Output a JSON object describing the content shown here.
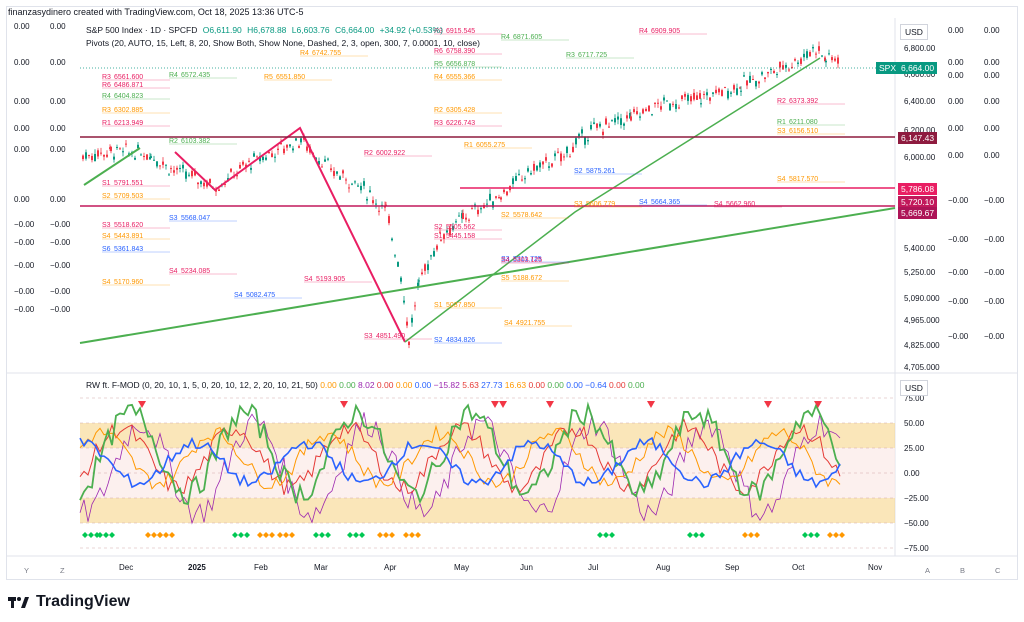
{
  "credit": "finanzasydinero created with TradingView.com, Oct 18, 2025 13:36 UTC-5",
  "header": {
    "symbol": "S&P 500 Index · 1D · SPCFD",
    "open": "O6,611.90",
    "high": "H6,678.88",
    "low": "L6,603.76",
    "close": "C6,664.00",
    "change": "+34.92 (+0.53%)",
    "pivots": "Pivots (20, AUTO, 15, Left, 8, 20, Show Both, Show None, Dashed, 2, 3, open, 300, 7, 0.0001, 10, close)",
    "rw": "RW ft. F-MOD (0, 20, 10, 1, 5, 0, 20, 10, 12, 2, 20, 10, 21, 50)",
    "rw_values": [
      "0.00",
      "0.00",
      "8.02",
      "0.00",
      "0.00",
      "0.00",
      "−15.82",
      "5.63",
      "27.73",
      "16.63",
      "0.00",
      "0.00",
      "0.00",
      "−0.64",
      "0.00",
      "0.00"
    ]
  },
  "price_scale": {
    "currency": "USD",
    "ticks": [
      "6,800.00",
      "6,600.00",
      "6,400.00",
      "6,200.00",
      "6,000.00",
      "5,400.00",
      "5,250.00",
      "5,090.000",
      "4,965.000",
      "4,825.000",
      "4,705.000"
    ],
    "tags": [
      {
        "label": "SPX",
        "value": "6,664.00",
        "color": "#089981"
      },
      {
        "label": "",
        "value": "6,147.43",
        "color": "#8e1b3f"
      },
      {
        "label": "",
        "value": "5,786.08",
        "color": "#e91e63"
      },
      {
        "label": "",
        "value": "5,720.10",
        "color": "#c2185b"
      },
      {
        "label": "",
        "value": "5,669.67",
        "color": "#ad1457"
      }
    ]
  },
  "osc_scale": {
    "currency": "USD",
    "ticks": [
      "75.00",
      "50.00",
      "25.00",
      "0.00",
      "−25.00",
      "−50.00",
      "−75.00"
    ]
  },
  "left_scale_top": [
    "0.00",
    "0.00",
    "0.00",
    "0.00",
    "0.00",
    "0.00",
    "−0.00",
    "−0.00",
    "−0.00",
    "−0.00",
    "−0.00"
  ],
  "right_extra_scale": [
    "0.00",
    "0.00",
    "0.00",
    "0.00",
    "0.00",
    "0.00",
    "−0.00",
    "−0.00",
    "−0.00",
    "−0.00",
    "−0.00"
  ],
  "time_axis": [
    "Dec",
    "2025",
    "Feb",
    "Mar",
    "Apr",
    "May",
    "Jun",
    "Jul",
    "Aug",
    "Sep",
    "Oct",
    "Nov"
  ],
  "nav_letters": [
    "Y",
    "Z",
    "A",
    "B",
    "C"
  ],
  "brand": "TradingView",
  "level_labels": [
    {
      "t": "R3",
      "v": "6561.600"
    },
    {
      "t": "R4",
      "v": "6572.435"
    },
    {
      "t": "R5",
      "v": "6551.850"
    },
    {
      "t": "R6",
      "v": "6486.871"
    },
    {
      "t": "R4",
      "v": "6404.823"
    },
    {
      "t": "R3",
      "v": "6302.885"
    },
    {
      "t": "R1",
      "v": "6213.949"
    },
    {
      "t": "R2",
      "v": "6103.382"
    },
    {
      "t": "R1",
      "v": "6055.275"
    },
    {
      "t": "R2",
      "v": "6002.922"
    },
    {
      "t": "S1",
      "v": "5791.551"
    },
    {
      "t": "S2",
      "v": "5709.503"
    },
    {
      "t": "S3",
      "v": "5568.047"
    },
    {
      "t": "S3",
      "v": "5518.620"
    },
    {
      "t": "S4",
      "v": "5443.891"
    },
    {
      "t": "S6",
      "v": "5361.843"
    },
    {
      "t": "S4",
      "v": "5234.085"
    },
    {
      "t": "S4",
      "v": "5170.960"
    },
    {
      "t": "S4",
      "v": "5082.475"
    },
    {
      "t": "S4",
      "v": "5193.905"
    },
    {
      "t": "S1",
      "v": "5037.850"
    },
    {
      "t": "S2",
      "v": "4834.826"
    },
    {
      "t": "S3",
      "v": "4851.490"
    },
    {
      "t": "S4",
      "v": "4921.755"
    },
    {
      "t": "R3",
      "v": "6915.545"
    },
    {
      "t": "R4",
      "v": "6871.605"
    },
    {
      "t": "R4",
      "v": "6742.755"
    },
    {
      "t": "R6",
      "v": "6758.390"
    },
    {
      "t": "R5",
      "v": "6656.878"
    },
    {
      "t": "R4",
      "v": "6555.366"
    },
    {
      "t": "R4",
      "v": "6909.905"
    },
    {
      "t": "R3",
      "v": "6717.725"
    },
    {
      "t": "R2",
      "v": "6305.428"
    },
    {
      "t": "R3",
      "v": "6226.743"
    },
    {
      "t": "S1",
      "v": "5445.158"
    },
    {
      "t": "S2",
      "v": "5578.642"
    },
    {
      "t": "S3",
      "v": "5311.725"
    },
    {
      "t": "S4",
      "v": "5303.125"
    },
    {
      "t": "S4",
      "v": "5817.570"
    },
    {
      "t": "S2",
      "v": "5875.261"
    },
    {
      "t": "S2",
      "v": "5505.562"
    },
    {
      "t": "S5",
      "v": "5188.672"
    },
    {
      "t": "R2",
      "v": "6373.392"
    },
    {
      "t": "R1",
      "v": "6211.080"
    },
    {
      "t": "S3",
      "v": "6156.510"
    },
    {
      "t": "S4",
      "v": "5664.365"
    },
    {
      "t": "S4",
      "v": "5662.960"
    },
    {
      "t": "S3",
      "v": "5606.779"
    }
  ],
  "chart_data": {
    "type": "line",
    "title": "S&P 500 Index · 1D · SPCFD",
    "series": [
      {
        "name": "S&P 500 Index",
        "x": [
          "Dec",
          "2025",
          "Feb",
          "Mar",
          "Apr",
          "May",
          "Jun",
          "Jul",
          "Aug",
          "Sep",
          "Oct"
        ],
        "values": [
          6050,
          5920,
          6040,
          5850,
          5070,
          5600,
          5920,
          6220,
          6350,
          6500,
          6664
        ]
      }
    ],
    "ylim": [
      4705,
      6900
    ],
    "grid": false,
    "oscillator": {
      "name": "RW ft. F-MOD",
      "ylim": [
        -75,
        75
      ],
      "bands": [
        [
          25,
          50
        ],
        [
          -50,
          -25
        ]
      ]
    }
  }
}
